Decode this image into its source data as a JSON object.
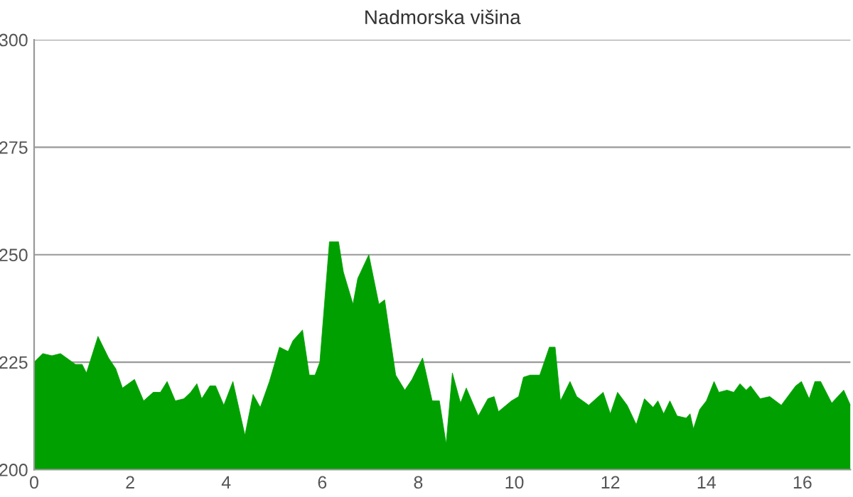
{
  "chart_data": {
    "type": "area",
    "title": "Nadmorska višina",
    "xlim": [
      0,
      17
    ],
    "ylim": [
      200,
      300
    ],
    "xticks": [
      0,
      2,
      4,
      6,
      8,
      10,
      12,
      14,
      16
    ],
    "yticks": [
      200,
      225,
      250,
      275,
      300
    ],
    "grid": "y",
    "legend": false,
    "series": [
      {
        "color": "#00a000",
        "x": [
          0,
          0.18,
          0.37,
          0.55,
          0.86,
          1.0,
          1.09,
          1.33,
          1.55,
          1.7,
          1.84,
          2.09,
          2.28,
          2.48,
          2.63,
          2.77,
          2.94,
          3.12,
          3.26,
          3.39,
          3.49,
          3.66,
          3.78,
          3.95,
          4.14,
          4.39,
          4.56,
          4.71,
          4.9,
          5.11,
          5.29,
          5.39,
          5.59,
          5.73,
          5.85,
          5.95,
          6.15,
          6.34,
          6.44,
          6.64,
          6.74,
          6.97,
          7.18,
          7.3,
          7.53,
          7.72,
          7.87,
          8.09,
          8.29,
          8.44,
          8.58,
          8.71,
          8.88,
          9.0,
          9.25,
          9.45,
          9.58,
          9.67,
          9.94,
          10.09,
          10.19,
          10.33,
          10.53,
          10.73,
          10.85,
          10.96,
          11.16,
          11.3,
          11.55,
          11.75,
          11.85,
          12.0,
          12.15,
          12.35,
          12.54,
          12.71,
          12.89,
          12.99,
          13.11,
          13.24,
          13.39,
          13.58,
          13.66,
          13.73,
          13.86,
          14.0,
          14.16,
          14.26,
          14.43,
          14.57,
          14.7,
          14.83,
          14.92,
          15.12,
          15.32,
          15.56,
          15.86,
          15.98,
          16.14,
          16.26,
          16.38,
          16.61,
          16.86,
          17.0
        ],
        "values": [
          225,
          227,
          226.5,
          227,
          224.5,
          224.5,
          222.5,
          231,
          226,
          223.5,
          219,
          221,
          216,
          218,
          218,
          220.5,
          216,
          216.5,
          218,
          220,
          216.5,
          219.5,
          219.5,
          215,
          220.5,
          208,
          217.5,
          214.5,
          220.5,
          228.5,
          227.5,
          230,
          232.5,
          222,
          222,
          225,
          253,
          253,
          246,
          238.5,
          244.5,
          250,
          238.5,
          239.5,
          222,
          218.5,
          221,
          226,
          216,
          216,
          206,
          222.5,
          215.5,
          219,
          212.5,
          216.5,
          217,
          213.5,
          216,
          217,
          221.5,
          222,
          222,
          228.5,
          228.5,
          216,
          220.5,
          217,
          215,
          217,
          218,
          213,
          218,
          215,
          210.5,
          216.5,
          214.5,
          216,
          213,
          216,
          212.5,
          212,
          213,
          209.5,
          214,
          216,
          220.5,
          218,
          218.5,
          218,
          220,
          218.5,
          219.5,
          216.5,
          217,
          215,
          219.5,
          220.5,
          216.5,
          220.5,
          220.5,
          215.5,
          218.5,
          215
        ]
      }
    ]
  }
}
